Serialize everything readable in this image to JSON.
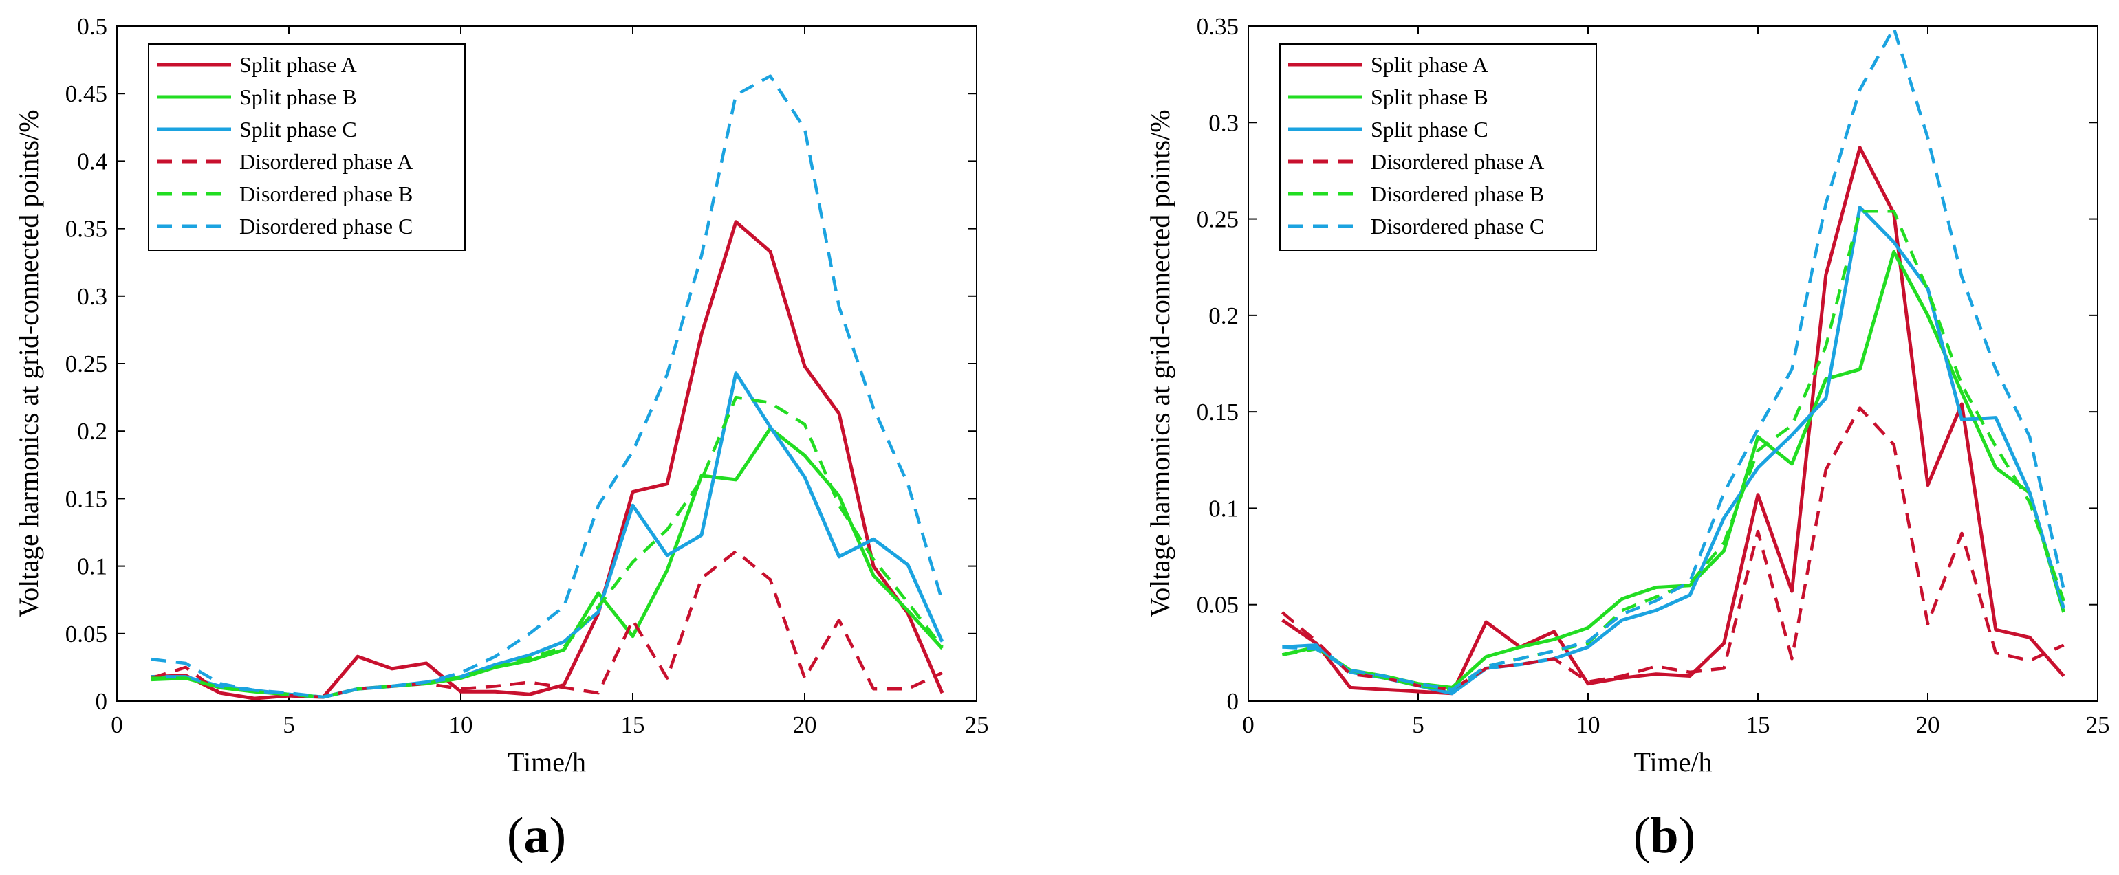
{
  "figure": {
    "panel_labels": [
      "(a)",
      "(b)"
    ]
  },
  "chart_data": [
    {
      "type": "line",
      "panel": "(a)",
      "title": "",
      "xlabel": "Time/h",
      "ylabel": "Voltage harmonics at grid-connected points/%",
      "xlim": [
        0,
        25
      ],
      "ylim": [
        0,
        0.5
      ],
      "xticks": [
        0,
        5,
        10,
        15,
        20,
        25
      ],
      "yticks": [
        0,
        0.05,
        0.1,
        0.15,
        0.2,
        0.25,
        0.3,
        0.35,
        0.4,
        0.45,
        0.5
      ],
      "ytick_labels": [
        "0",
        "0.05",
        "0.1",
        "0.15",
        "0.2",
        "0.25",
        "0.3",
        "0.35",
        "0.4",
        "0.45",
        "0.5"
      ],
      "legend_position": "top-left",
      "x": [
        1,
        2,
        3,
        4,
        5,
        6,
        7,
        8,
        9,
        10,
        11,
        12,
        13,
        14,
        15,
        16,
        17,
        18,
        19,
        20,
        21,
        22,
        23,
        24
      ],
      "series": [
        {
          "name": "Split phase A",
          "color": "#c8102e",
          "dash": "solid",
          "values": [
            0.018,
            0.019,
            0.006,
            0.002,
            0.004,
            0.003,
            0.033,
            0.024,
            0.028,
            0.007,
            0.007,
            0.005,
            0.012,
            0.065,
            0.155,
            0.161,
            0.272,
            0.355,
            0.333,
            0.248,
            0.213,
            0.1,
            0.065,
            0.006
          ]
        },
        {
          "name": "Split phase B",
          "color": "#22dd22",
          "dash": "solid",
          "values": [
            0.016,
            0.017,
            0.01,
            0.007,
            0.005,
            0.003,
            0.009,
            0.011,
            0.013,
            0.017,
            0.025,
            0.03,
            0.038,
            0.08,
            0.048,
            0.097,
            0.167,
            0.164,
            0.202,
            0.182,
            0.152,
            0.093,
            0.067,
            0.039
          ]
        },
        {
          "name": "Split phase C",
          "color": "#1ba3e0",
          "dash": "solid",
          "values": [
            0.018,
            0.018,
            0.011,
            0.008,
            0.005,
            0.003,
            0.009,
            0.011,
            0.014,
            0.018,
            0.027,
            0.034,
            0.044,
            0.066,
            0.145,
            0.108,
            0.123,
            0.243,
            0.203,
            0.166,
            0.107,
            0.12,
            0.101,
            0.044
          ]
        },
        {
          "name": "Disordered phase A",
          "color": "#c8102e",
          "dash": "dashed",
          "values": [
            0.017,
            0.025,
            0.006,
            0.002,
            0.004,
            0.003,
            0.009,
            0.011,
            0.013,
            0.009,
            0.011,
            0.014,
            0.01,
            0.006,
            0.06,
            0.017,
            0.091,
            0.111,
            0.09,
            0.017,
            0.06,
            0.009,
            0.009,
            0.021
          ]
        },
        {
          "name": "Disordered phase B",
          "color": "#22dd22",
          "dash": "dashed",
          "values": [
            0.017,
            0.017,
            0.01,
            0.007,
            0.005,
            0.003,
            0.009,
            0.011,
            0.013,
            0.018,
            0.025,
            0.032,
            0.04,
            0.07,
            0.103,
            0.127,
            0.164,
            0.225,
            0.221,
            0.205,
            0.145,
            0.105,
            0.073,
            0.04
          ]
        },
        {
          "name": "Disordered phase C",
          "color": "#1ba3e0",
          "dash": "dashed",
          "values": [
            0.031,
            0.028,
            0.013,
            0.008,
            0.006,
            0.003,
            0.009,
            0.011,
            0.014,
            0.021,
            0.033,
            0.05,
            0.07,
            0.145,
            0.185,
            0.242,
            0.33,
            0.449,
            0.463,
            0.424,
            0.292,
            0.217,
            0.161,
            0.074
          ]
        }
      ]
    },
    {
      "type": "line",
      "panel": "(b)",
      "title": "",
      "xlabel": "Time/h",
      "ylabel": "Voltage harmonics at grid-connected points/%",
      "xlim": [
        0,
        25
      ],
      "ylim": [
        0,
        0.35
      ],
      "xticks": [
        0,
        5,
        10,
        15,
        20,
        25
      ],
      "yticks": [
        0,
        0.05,
        0.1,
        0.15,
        0.2,
        0.25,
        0.3,
        0.35
      ],
      "ytick_labels": [
        "0",
        "0.05",
        "0.1",
        "0.15",
        "0.2",
        "0.25",
        "0.3",
        "0.35"
      ],
      "legend_position": "top-left",
      "x": [
        1,
        2,
        3,
        4,
        5,
        6,
        7,
        8,
        9,
        10,
        11,
        12,
        13,
        14,
        15,
        16,
        17,
        18,
        19,
        20,
        21,
        22,
        23,
        24
      ],
      "series": [
        {
          "name": "Split phase A",
          "color": "#c8102e",
          "dash": "solid",
          "values": [
            0.042,
            0.03,
            0.007,
            0.006,
            0.005,
            0.004,
            0.041,
            0.028,
            0.036,
            0.009,
            0.012,
            0.014,
            0.013,
            0.03,
            0.107,
            0.057,
            0.221,
            0.287,
            0.253,
            0.112,
            0.154,
            0.037,
            0.033,
            0.013
          ]
        },
        {
          "name": "Split phase B",
          "color": "#22dd22",
          "dash": "solid",
          "values": [
            0.024,
            0.028,
            0.016,
            0.013,
            0.009,
            0.007,
            0.023,
            0.028,
            0.032,
            0.038,
            0.053,
            0.059,
            0.06,
            0.078,
            0.137,
            0.123,
            0.167,
            0.172,
            0.233,
            0.2,
            0.16,
            0.121,
            0.108,
            0.046
          ]
        },
        {
          "name": "Split phase C",
          "color": "#1ba3e0",
          "dash": "solid",
          "values": [
            0.028,
            0.029,
            0.015,
            0.012,
            0.008,
            0.004,
            0.017,
            0.019,
            0.022,
            0.028,
            0.042,
            0.047,
            0.055,
            0.095,
            0.121,
            0.138,
            0.157,
            0.256,
            0.238,
            0.214,
            0.146,
            0.147,
            0.108,
            0.048
          ]
        },
        {
          "name": "Disordered phase A",
          "color": "#c8102e",
          "dash": "dashed",
          "values": [
            0.046,
            0.031,
            0.014,
            0.012,
            0.008,
            0.006,
            0.017,
            0.019,
            0.022,
            0.01,
            0.013,
            0.018,
            0.015,
            0.017,
            0.088,
            0.022,
            0.12,
            0.152,
            0.133,
            0.04,
            0.087,
            0.025,
            0.021,
            0.029
          ]
        },
        {
          "name": "Disordered phase B",
          "color": "#22dd22",
          "dash": "dashed",
          "values": [
            0.024,
            0.027,
            0.016,
            0.012,
            0.008,
            0.006,
            0.018,
            0.022,
            0.026,
            0.03,
            0.047,
            0.054,
            0.061,
            0.082,
            0.13,
            0.143,
            0.184,
            0.254,
            0.254,
            0.213,
            0.164,
            0.132,
            0.103,
            0.052
          ]
        },
        {
          "name": "Disordered phase C",
          "color": "#1ba3e0",
          "dash": "dashed",
          "values": [
            0.028,
            0.027,
            0.016,
            0.013,
            0.009,
            0.006,
            0.018,
            0.022,
            0.026,
            0.031,
            0.045,
            0.052,
            0.062,
            0.108,
            0.141,
            0.172,
            0.258,
            0.317,
            0.349,
            0.292,
            0.22,
            0.172,
            0.137,
            0.058
          ]
        }
      ]
    }
  ]
}
